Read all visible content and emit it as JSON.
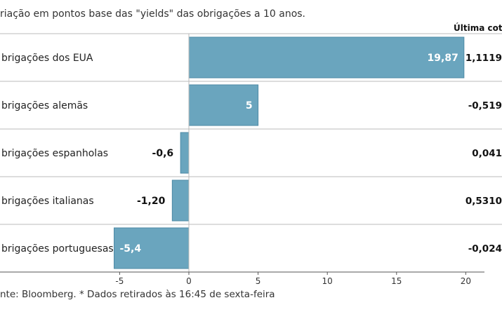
{
  "subtitle": "riação em pontos base das \"yields\" das obrigações a 10 anos.",
  "source": "nte: Bloomberg.  * Dados retirados às 16:45 de sexta-feira",
  "cotacao_header": "Última cotação",
  "colors": {
    "bar": "#6aa5be",
    "bar_stroke": "#4d8aa5",
    "grid": "#bbbbbb",
    "axis": "#555555"
  },
  "chart_data": {
    "type": "bar",
    "orientation": "horizontal",
    "categories": [
      "brigações dos EUA",
      "brigações alemãs",
      "brigações espanholas",
      "brigações italianas",
      "brigações portuguesas"
    ],
    "values": [
      19.87,
      5,
      -0.6,
      -1.2,
      -5.4
    ],
    "value_labels": [
      "19,87",
      "5",
      "-0,6",
      "-1,20",
      "-5,4"
    ],
    "cotacao": [
      "1,1119",
      "-0,519",
      "0,041",
      "0,5310",
      "-0,024"
    ],
    "xlim": [
      -5.5,
      20
    ],
    "xticks": [
      -5,
      0,
      5,
      10,
      15,
      20
    ],
    "xtick_labels": [
      "-5",
      "0",
      "5",
      "10",
      "15",
      "20"
    ],
    "grid": false
  }
}
